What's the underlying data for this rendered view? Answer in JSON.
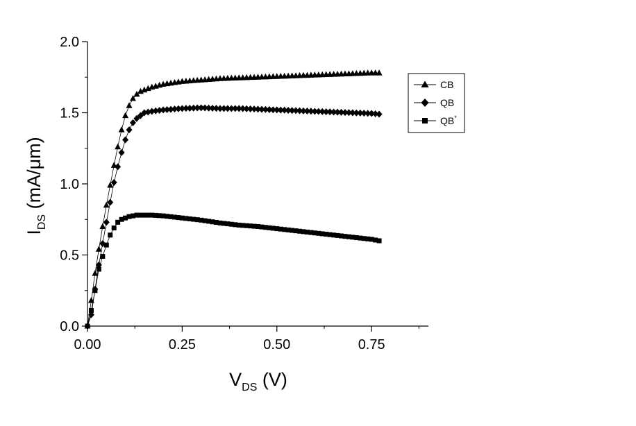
{
  "chart_data": {
    "type": "line",
    "title": "",
    "xlabel": {
      "main": "V",
      "sub": "DS",
      "unit": " (V)"
    },
    "ylabel": {
      "main": "I",
      "sub": "DS",
      "unit": " (mA/μm)"
    },
    "xlim": [
      0,
      0.9
    ],
    "ylim": [
      0,
      2.0
    ],
    "xticks": [
      0.0,
      0.25,
      0.5,
      0.75
    ],
    "xtick_labels": [
      "0.00",
      "0.25",
      "0.50",
      "0.75"
    ],
    "yticks": [
      0.0,
      0.5,
      1.0,
      1.5,
      2.0
    ],
    "ytick_labels": [
      "0.0",
      "0.5",
      "1.0",
      "1.5",
      "2.0"
    ],
    "grid": false,
    "legend_position": "right",
    "series": [
      {
        "name": "CB",
        "marker": "triangle",
        "x": [
          0.0,
          0.01,
          0.02,
          0.03,
          0.04,
          0.05,
          0.06,
          0.07,
          0.08,
          0.09,
          0.1,
          0.11,
          0.12,
          0.13,
          0.14,
          0.15,
          0.17,
          0.2,
          0.25,
          0.3,
          0.35,
          0.4,
          0.45,
          0.5,
          0.55,
          0.6,
          0.65,
          0.7,
          0.75,
          0.77
        ],
        "y": [
          0.0,
          0.18,
          0.37,
          0.54,
          0.7,
          0.85,
          0.99,
          1.13,
          1.26,
          1.38,
          1.48,
          1.55,
          1.6,
          1.63,
          1.65,
          1.66,
          1.68,
          1.7,
          1.72,
          1.73,
          1.74,
          1.745,
          1.75,
          1.755,
          1.76,
          1.765,
          1.77,
          1.775,
          1.78,
          1.78
        ]
      },
      {
        "name": "QB",
        "marker": "diamond",
        "x": [
          0.0,
          0.01,
          0.02,
          0.03,
          0.04,
          0.05,
          0.06,
          0.07,
          0.08,
          0.09,
          0.1,
          0.11,
          0.12,
          0.13,
          0.14,
          0.15,
          0.17,
          0.2,
          0.25,
          0.3,
          0.35,
          0.4,
          0.45,
          0.5,
          0.55,
          0.6,
          0.65,
          0.7,
          0.75,
          0.77
        ],
        "y": [
          0.0,
          0.08,
          0.26,
          0.43,
          0.58,
          0.73,
          0.87,
          1.01,
          1.12,
          1.22,
          1.31,
          1.38,
          1.43,
          1.46,
          1.48,
          1.5,
          1.51,
          1.52,
          1.53,
          1.535,
          1.53,
          1.53,
          1.525,
          1.52,
          1.515,
          1.51,
          1.505,
          1.5,
          1.495,
          1.49
        ]
      },
      {
        "name": "QB*",
        "legend_main": "QB",
        "legend_sup": "*",
        "marker": "square",
        "x": [
          0.0,
          0.01,
          0.02,
          0.03,
          0.04,
          0.05,
          0.06,
          0.07,
          0.08,
          0.09,
          0.1,
          0.11,
          0.12,
          0.13,
          0.14,
          0.15,
          0.17,
          0.2,
          0.25,
          0.3,
          0.35,
          0.4,
          0.45,
          0.5,
          0.55,
          0.6,
          0.65,
          0.7,
          0.75,
          0.77
        ],
        "y": [
          0.0,
          0.11,
          0.25,
          0.4,
          0.49,
          0.57,
          0.64,
          0.69,
          0.73,
          0.75,
          0.76,
          0.77,
          0.775,
          0.78,
          0.78,
          0.78,
          0.78,
          0.775,
          0.76,
          0.745,
          0.725,
          0.71,
          0.7,
          0.685,
          0.67,
          0.655,
          0.64,
          0.625,
          0.61,
          0.6
        ]
      }
    ]
  }
}
